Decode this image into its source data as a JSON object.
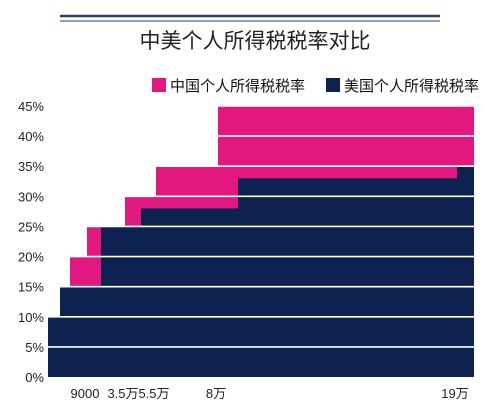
{
  "chart_data": {
    "type": "area",
    "title": "中美个人所得税税率对比",
    "xlabel": "",
    "ylabel": "",
    "ylim": [
      0,
      45
    ],
    "yticks": [
      "0%",
      "5%",
      "10%",
      "15%",
      "20%",
      "25%",
      "30%",
      "35%",
      "40%",
      "45%"
    ],
    "xticks": [
      {
        "label": "9000",
        "value": 9000
      },
      {
        "label": "3.5万",
        "value": 35000
      },
      {
        "label": "5.5万",
        "value": 55000
      },
      {
        "label": "8万",
        "value": 80000
      },
      {
        "label": "19万",
        "value": 190000
      }
    ],
    "legend_position": "top-right",
    "grid": true,
    "step_plot": true,
    "series": [
      {
        "name": "中国个人所得税税率",
        "color": "#e2187e",
        "steps": [
          {
            "x": 0,
            "y": 3
          },
          {
            "x": 1500,
            "y": 10
          },
          {
            "x": 4500,
            "y": 20
          },
          {
            "x": 9000,
            "y": 25
          },
          {
            "x": 35000,
            "y": 30
          },
          {
            "x": 55000,
            "y": 35
          },
          {
            "x": 80000,
            "y": 45
          }
        ],
        "x_end": 195000
      },
      {
        "name": "美国个人所得税税率",
        "color": "#0d2251",
        "steps": [
          {
            "x": 0,
            "y": 10
          },
          {
            "x": 3000,
            "y": 15
          },
          {
            "x": 20000,
            "y": 25
          },
          {
            "x": 45000,
            "y": 28
          },
          {
            "x": 100000,
            "y": 33
          },
          {
            "x": 190000,
            "y": 35
          }
        ],
        "x_end": 195000
      }
    ]
  },
  "colors": {
    "background": "#ffffff",
    "header_rule": "#2b3f68",
    "gridline": "#ffffff"
  }
}
